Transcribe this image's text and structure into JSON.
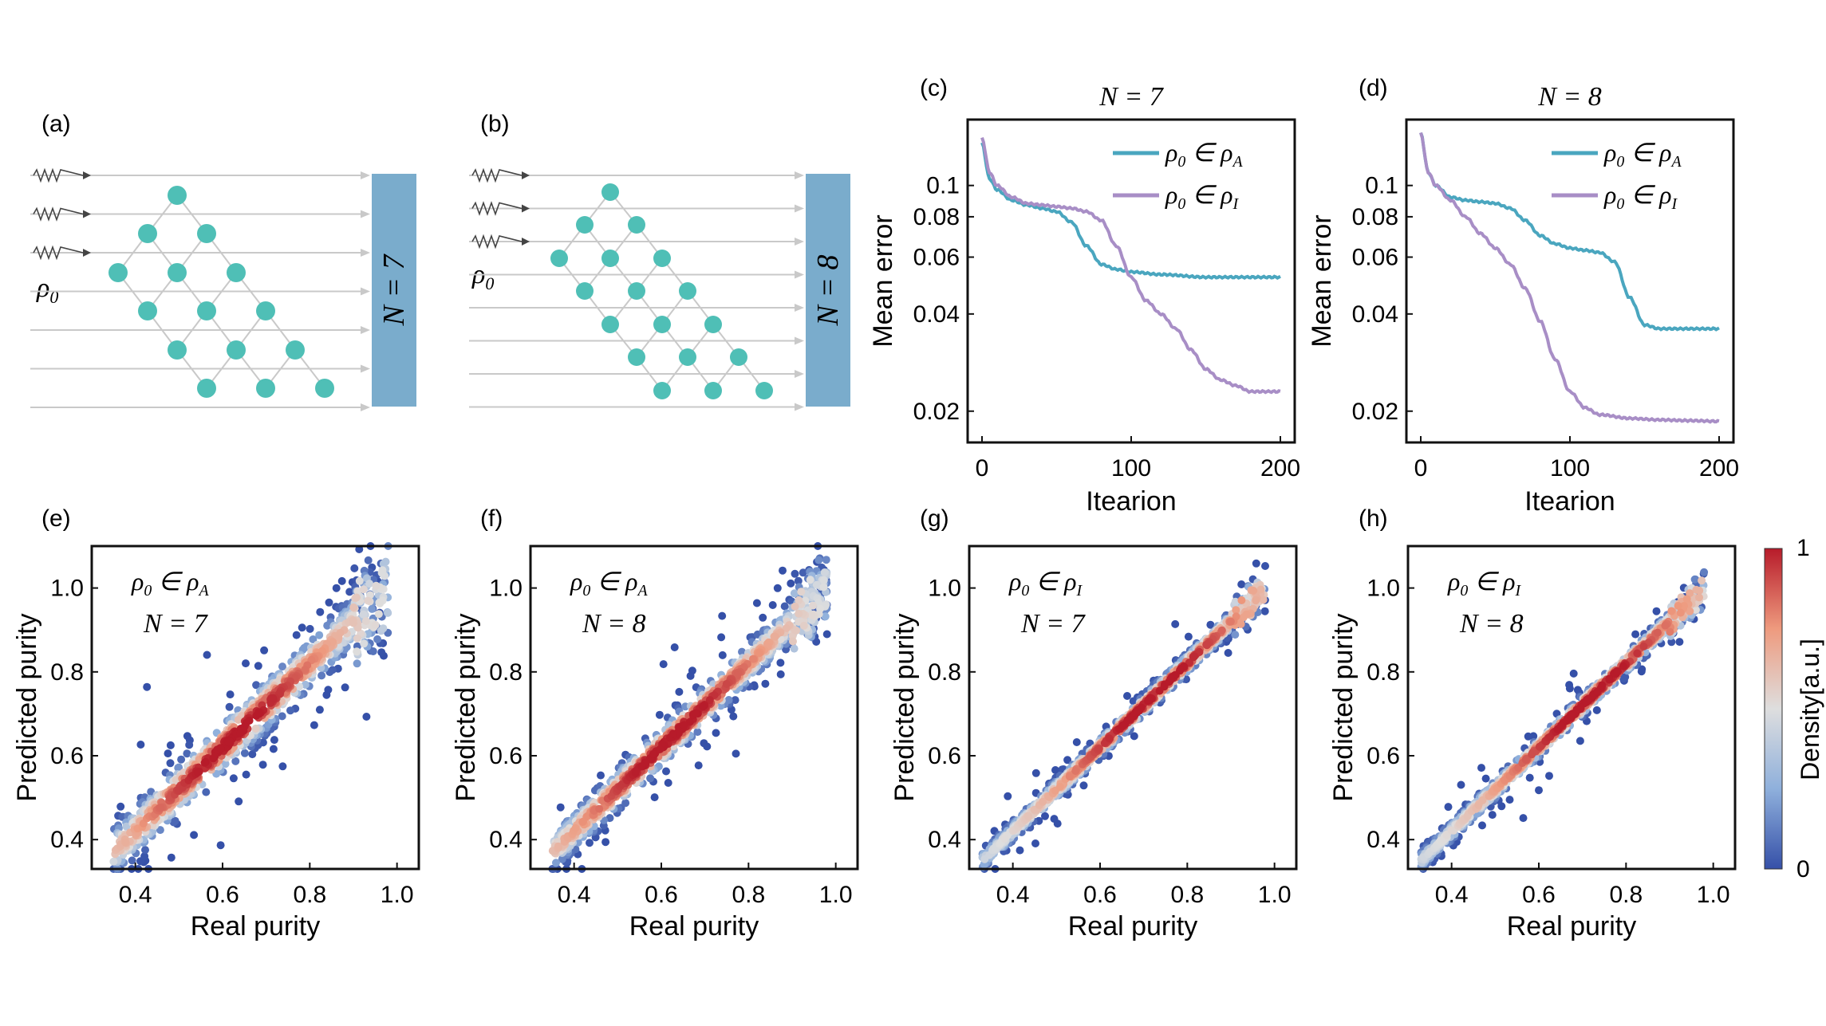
{
  "panels": {
    "a": {
      "label": "(a)",
      "rho": "ρ",
      "rho_sub": "0",
      "box_label": "N = 7"
    },
    "b": {
      "label": "(b)",
      "rho": "ρ",
      "rho_sub": "0",
      "box_label": "N = 8"
    },
    "c": {
      "label": "(c)"
    },
    "d": {
      "label": "(d)"
    },
    "e": {
      "label": "(e)"
    },
    "f": {
      "label": "(f)"
    },
    "g": {
      "label": "(g)"
    },
    "h": {
      "label": "(h)"
    }
  },
  "legend": {
    "rhoA": "ρ₀ ∈ ρ_A",
    "rhoI": "ρ₀ ∈ ρ_I"
  },
  "colors": {
    "teal_node": "#4fbfb6",
    "box": "#7aaccc",
    "line_A": "#4aa6bf",
    "line_I": "#a88ec6",
    "dens_low": "#3550a8",
    "dens_mid": "#dedede",
    "dens_high": "#b71b2a"
  },
  "colorbar": {
    "label": "Density[a.u.]",
    "max": "1",
    "min": "0"
  },
  "chart_data": [
    {
      "id": "c",
      "type": "line",
      "title": "N = 7",
      "xlabel": "Itearion",
      "ylabel": "Mean error",
      "xlim": [
        0,
        200
      ],
      "ylim": [
        0.016,
        0.16
      ],
      "yscale": "log",
      "xticks": [
        "0",
        "100",
        "200"
      ],
      "yticks": [
        "0.02",
        "0.04",
        "0.06",
        "0.08",
        "0.1"
      ],
      "legend_position": "top-right",
      "series": [
        {
          "name": "ρ₀ ∈ ρ_A",
          "key": "rhoA",
          "x": [
            0,
            5,
            10,
            20,
            30,
            40,
            50,
            60,
            70,
            80,
            90,
            100,
            120,
            150,
            200
          ],
          "y": [
            0.135,
            0.105,
            0.097,
            0.09,
            0.087,
            0.085,
            0.083,
            0.077,
            0.065,
            0.057,
            0.055,
            0.054,
            0.053,
            0.052,
            0.052
          ]
        },
        {
          "name": "ρ₀ ∈ ρ_I",
          "key": "rhoI",
          "x": [
            0,
            5,
            10,
            20,
            30,
            40,
            50,
            60,
            70,
            80,
            90,
            100,
            110,
            120,
            130,
            140,
            150,
            160,
            170,
            180,
            190,
            200
          ],
          "y": [
            0.14,
            0.11,
            0.1,
            0.092,
            0.088,
            0.087,
            0.086,
            0.085,
            0.083,
            0.078,
            0.065,
            0.052,
            0.044,
            0.04,
            0.036,
            0.031,
            0.027,
            0.025,
            0.024,
            0.023,
            0.023,
            0.023
          ]
        }
      ]
    },
    {
      "id": "d",
      "type": "line",
      "title": "N = 8",
      "xlabel": "Itearion",
      "ylabel": "Mean error",
      "xlim": [
        0,
        200
      ],
      "ylim": [
        0.016,
        0.16
      ],
      "yscale": "log",
      "xticks": [
        "0",
        "100",
        "200"
      ],
      "yticks": [
        "0.02",
        "0.04",
        "0.06",
        "0.08",
        "0.1"
      ],
      "legend_position": "top-right",
      "series": [
        {
          "name": "ρ₀ ∈ ρ_A",
          "key": "rhoA",
          "x": [
            0,
            5,
            10,
            20,
            30,
            40,
            50,
            60,
            70,
            80,
            90,
            100,
            110,
            120,
            130,
            140,
            150,
            160,
            180,
            200
          ],
          "y": [
            0.145,
            0.11,
            0.1,
            0.092,
            0.09,
            0.089,
            0.088,
            0.085,
            0.078,
            0.07,
            0.066,
            0.064,
            0.063,
            0.062,
            0.058,
            0.045,
            0.037,
            0.036,
            0.036,
            0.036
          ]
        },
        {
          "name": "ρ₀ ∈ ρ_I",
          "key": "rhoI",
          "x": [
            0,
            5,
            10,
            20,
            30,
            40,
            50,
            60,
            70,
            80,
            90,
            100,
            110,
            120,
            140,
            160,
            180,
            200
          ],
          "y": [
            0.145,
            0.11,
            0.1,
            0.09,
            0.08,
            0.071,
            0.064,
            0.057,
            0.048,
            0.038,
            0.029,
            0.023,
            0.0205,
            0.0195,
            0.019,
            0.0188,
            0.0187,
            0.0186
          ]
        }
      ]
    },
    {
      "id": "e",
      "type": "scatter",
      "xlabel": "Real purity",
      "ylabel": "Predicted purity",
      "xlim": [
        0.3,
        1.05
      ],
      "ylim": [
        0.33,
        1.1
      ],
      "xticks": [
        "0.4",
        "0.6",
        "0.8",
        "1.0"
      ],
      "yticks": [
        "0.4",
        "0.6",
        "0.8",
        "1.0"
      ],
      "annotation": "ρ₀ ∈ ρ_A",
      "annotation_key": "rhoA",
      "n_label": "N = 7",
      "x_range": [
        0.35,
        0.98
      ],
      "spread": 0.045,
      "points": 900,
      "seed": 11
    },
    {
      "id": "f",
      "type": "scatter",
      "xlabel": "Real purity",
      "ylabel": "Predicted purity",
      "xlim": [
        0.3,
        1.05
      ],
      "ylim": [
        0.33,
        1.1
      ],
      "xticks": [
        "0.4",
        "0.6",
        "0.8",
        "1.0"
      ],
      "yticks": [
        "0.4",
        "0.6",
        "0.8",
        "1.0"
      ],
      "annotation": "ρ₀ ∈ ρ_A",
      "annotation_key": "rhoA",
      "n_label": "N = 8",
      "x_range": [
        0.35,
        0.98
      ],
      "spread": 0.035,
      "points": 900,
      "seed": 23
    },
    {
      "id": "g",
      "type": "scatter",
      "xlabel": "Real purity",
      "ylabel": "Predicted purity",
      "xlim": [
        0.3,
        1.05
      ],
      "ylim": [
        0.33,
        1.1
      ],
      "xticks": [
        "0.4",
        "0.6",
        "0.8",
        "1.0"
      ],
      "yticks": [
        "0.4",
        "0.6",
        "0.8",
        "1.0"
      ],
      "annotation": "ρ₀ ∈ ρ_I",
      "annotation_key": "rhoI",
      "n_label": "N = 7",
      "x_range": [
        0.33,
        0.98
      ],
      "spread": 0.018,
      "points": 900,
      "seed": 37
    },
    {
      "id": "h",
      "type": "scatter",
      "xlabel": "Real purity",
      "ylabel": "Predicted purity",
      "xlim": [
        0.3,
        1.05
      ],
      "ylim": [
        0.33,
        1.1
      ],
      "xticks": [
        "0.4",
        "0.6",
        "0.8",
        "1.0"
      ],
      "yticks": [
        "0.4",
        "0.6",
        "0.8",
        "1.0"
      ],
      "annotation": "ρ₀ ∈ ρ_I",
      "annotation_key": "rhoI",
      "n_label": "N = 8",
      "x_range": [
        0.33,
        0.98
      ],
      "spread": 0.018,
      "points": 900,
      "seed": 53
    }
  ]
}
